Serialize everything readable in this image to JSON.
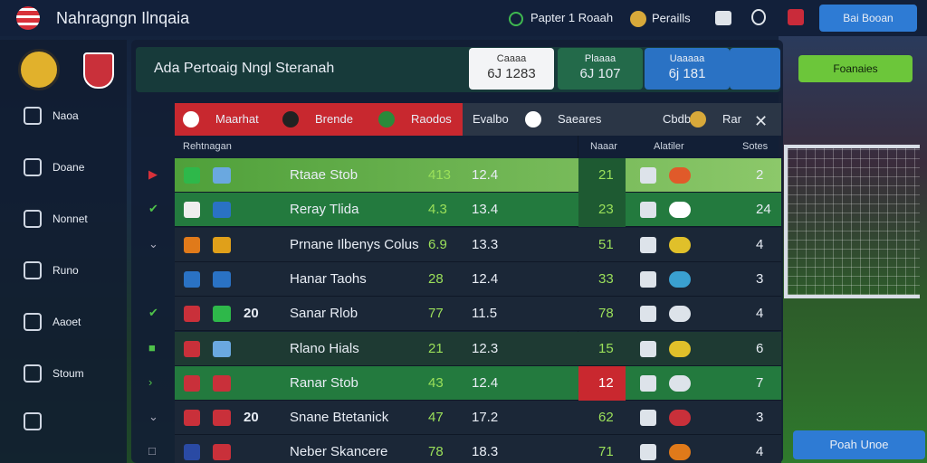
{
  "topbar": {
    "title": "Nahragngn Ilnqaia",
    "links": [
      "Papter 1 Roaah",
      "Peraills"
    ],
    "button": "Bai Booan"
  },
  "sidebar": {
    "items": [
      "Naoa",
      "Doane",
      "Nonnet",
      "Runo",
      "Aaoet",
      "Stoum"
    ]
  },
  "header": {
    "title": "Ada Pertoaig Nngl Steranah",
    "stats": [
      {
        "label": "Caaaa",
        "value": "6J 1283"
      },
      {
        "label": "Plaaaa",
        "value": "6J 107"
      },
      {
        "label": "Uaaaaa",
        "value": "6j 181"
      }
    ],
    "button": "Foanaies"
  },
  "tabs": [
    "Maarhat",
    "Brende",
    "Raodos",
    "Evalbo",
    "Saeares",
    "Cbdbie",
    "Rar"
  ],
  "table": {
    "columns": [
      "Rehtnagan",
      "Naaar",
      "Alatiler",
      "Sotes"
    ],
    "rows": [
      {
        "tag": null,
        "name": "Rtaae Stob",
        "a": "413",
        "b": "12.4",
        "n": "21",
        "s": "2"
      },
      {
        "tag": null,
        "name": "Reray Tlida",
        "a": "4.3",
        "b": "13.4",
        "n": "23",
        "s": "24"
      },
      {
        "tag": null,
        "name": "Prnane Ilbenys Colus",
        "a": "6.9",
        "b": "13.3",
        "n": "51",
        "s": "4"
      },
      {
        "tag": null,
        "name": "Hanar Taohs",
        "a": "28",
        "b": "12.4",
        "n": "33",
        "s": "3"
      },
      {
        "tag": "20",
        "name": "Sanar Rlob",
        "a": "77",
        "b": "11.5",
        "n": "78",
        "s": "4"
      },
      {
        "tag": null,
        "name": "Rlano Hials",
        "a": "21",
        "b": "12.3",
        "n": "15",
        "s": "6"
      },
      {
        "tag": null,
        "name": "Ranar Stob",
        "a": "43",
        "b": "12.4",
        "n": "12",
        "s": "7"
      },
      {
        "tag": "20",
        "name": "Snane Btetanick",
        "a": "47",
        "b": "17.2",
        "n": "62",
        "s": "3"
      },
      {
        "tag": null,
        "name": "Neber Skancere",
        "a": "78",
        "b": "18.3",
        "n": "71",
        "s": "4"
      }
    ]
  },
  "footer_button": "Poah Unoe"
}
